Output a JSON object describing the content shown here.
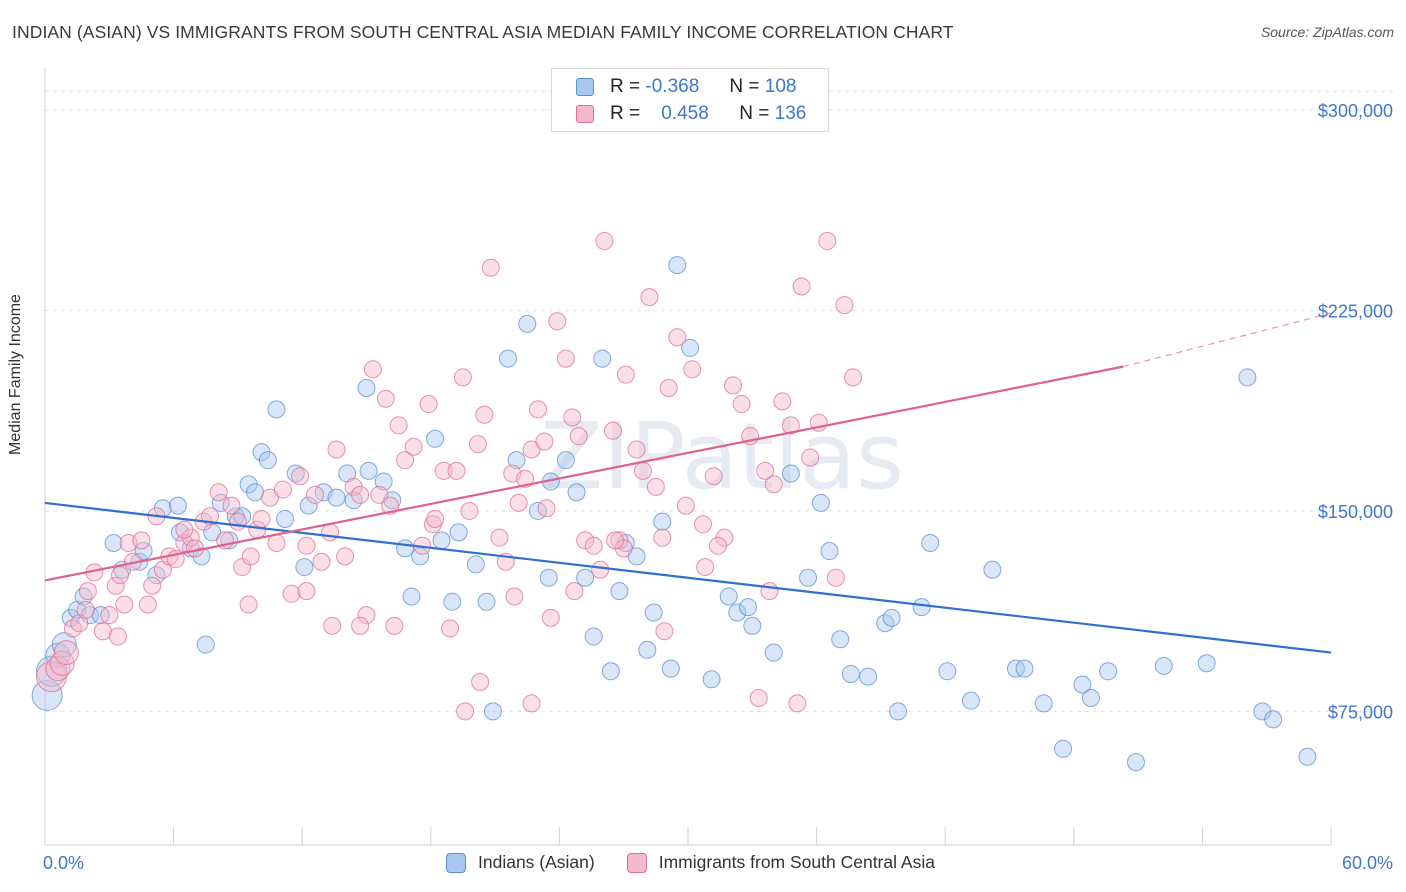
{
  "title": "INDIAN (ASIAN) VS IMMIGRANTS FROM SOUTH CENTRAL ASIA MEDIAN FAMILY INCOME CORRELATION CHART",
  "source": "Source: ZipAtlas.com",
  "watermark": "ZIPatlas",
  "colors": {
    "blue": "#5b8fd6",
    "blue_fill": "#a9c7ee",
    "pink": "#e06d93",
    "pink_fill": "#f4b9cc",
    "tick_text": "#3f77c8"
  },
  "legend": {
    "rows": [
      {
        "r_label": "R =",
        "r_value": "-0.368",
        "n_label": "N =",
        "n_value": "108"
      },
      {
        "r_label": "R =",
        "r_value": "0.458",
        "n_label": "N =",
        "n_value": "136"
      }
    ]
  },
  "bottom_legend": [
    "Indians (Asian)",
    "Immigrants from South Central Asia"
  ],
  "chart_data": {
    "type": "scatter",
    "ylabel": "Median Family Income",
    "xlim": [
      0,
      60
    ],
    "ylim": [
      25000,
      315000
    ],
    "x_tick_labels": [
      "0.0%",
      "60.0%"
    ],
    "y_ticks": [
      75000,
      150000,
      225000,
      300000
    ],
    "y_tick_labels": [
      "$75,000",
      "$150,000",
      "$225,000",
      "$300,000"
    ],
    "grid": "dashed horizontal",
    "series": [
      {
        "name": "Indians (Asian)",
        "trend": {
          "x": [
            0,
            60
          ],
          "y": [
            153000,
            97000
          ]
        },
        "points": [
          [
            0.1,
            81000
          ],
          [
            0.3,
            90000
          ],
          [
            0.6,
            96000
          ],
          [
            0.9,
            100000
          ],
          [
            1.2,
            110000
          ],
          [
            1.5,
            113000
          ],
          [
            1.8,
            118000
          ],
          [
            2.1,
            111000
          ],
          [
            3.2,
            138000
          ],
          [
            3.6,
            128000
          ],
          [
            4.4,
            131000
          ],
          [
            4.6,
            135000
          ],
          [
            5.2,
            126000
          ],
          [
            5.5,
            151000
          ],
          [
            6.2,
            152000
          ],
          [
            6.3,
            142000
          ],
          [
            6.8,
            136000
          ],
          [
            7.3,
            133000
          ],
          [
            7.5,
            100000
          ],
          [
            7.8,
            142000
          ],
          [
            8.2,
            153000
          ],
          [
            8.6,
            139000
          ],
          [
            8.9,
            148000
          ],
          [
            9.2,
            148000
          ],
          [
            9.5,
            160000
          ],
          [
            9.8,
            157000
          ],
          [
            10.1,
            172000
          ],
          [
            10.4,
            169000
          ],
          [
            10.8,
            188000
          ],
          [
            11.2,
            147000
          ],
          [
            11.7,
            164000
          ],
          [
            12.1,
            129000
          ],
          [
            12.3,
            152000
          ],
          [
            13.0,
            157000
          ],
          [
            13.6,
            155000
          ],
          [
            14.1,
            164000
          ],
          [
            14.4,
            154000
          ],
          [
            15.0,
            196000
          ],
          [
            15.1,
            165000
          ],
          [
            15.8,
            161000
          ],
          [
            16.2,
            154000
          ],
          [
            16.8,
            136000
          ],
          [
            17.1,
            118000
          ],
          [
            17.5,
            133000
          ],
          [
            18.2,
            177000
          ],
          [
            18.5,
            139000
          ],
          [
            19.0,
            116000
          ],
          [
            19.3,
            142000
          ],
          [
            20.1,
            130000
          ],
          [
            20.6,
            116000
          ],
          [
            20.9,
            75000
          ],
          [
            21.6,
            207000
          ],
          [
            22.0,
            169000
          ],
          [
            22.5,
            220000
          ],
          [
            23.0,
            150000
          ],
          [
            23.5,
            125000
          ],
          [
            23.6,
            161000
          ],
          [
            24.3,
            169000
          ],
          [
            24.8,
            157000
          ],
          [
            25.2,
            125000
          ],
          [
            25.6,
            103000
          ],
          [
            26.0,
            207000
          ],
          [
            26.4,
            90000
          ],
          [
            26.8,
            120000
          ],
          [
            27.1,
            138000
          ],
          [
            27.6,
            133000
          ],
          [
            28.1,
            98000
          ],
          [
            28.4,
            112000
          ],
          [
            28.8,
            146000
          ],
          [
            29.2,
            91000
          ],
          [
            29.5,
            242000
          ],
          [
            30.1,
            211000
          ],
          [
            31.1,
            87000
          ],
          [
            31.9,
            118000
          ],
          [
            32.3,
            112000
          ],
          [
            32.8,
            114000
          ],
          [
            33.0,
            107000
          ],
          [
            34.0,
            97000
          ],
          [
            34.8,
            164000
          ],
          [
            35.6,
            125000
          ],
          [
            36.2,
            153000
          ],
          [
            36.6,
            135000
          ],
          [
            37.1,
            102000
          ],
          [
            37.6,
            89000
          ],
          [
            38.4,
            88000
          ],
          [
            39.2,
            108000
          ],
          [
            39.5,
            110000
          ],
          [
            39.8,
            75000
          ],
          [
            40.9,
            114000
          ],
          [
            41.3,
            138000
          ],
          [
            42.1,
            90000
          ],
          [
            43.2,
            79000
          ],
          [
            44.2,
            128000
          ],
          [
            45.3,
            91000
          ],
          [
            45.7,
            91000
          ],
          [
            46.6,
            78000
          ],
          [
            47.5,
            61000
          ],
          [
            48.4,
            85000
          ],
          [
            48.8,
            80000
          ],
          [
            49.6,
            90000
          ],
          [
            50.9,
            56000
          ],
          [
            52.2,
            92000
          ],
          [
            54.2,
            93000
          ],
          [
            56.1,
            200000
          ],
          [
            56.8,
            75000
          ],
          [
            57.3,
            72000
          ],
          [
            58.9,
            58000
          ],
          [
            2.6,
            111000
          ]
        ]
      },
      {
        "name": "Immigrants from South Central Asia",
        "trend": {
          "x": [
            0,
            50.3
          ],
          "y": [
            124000,
            204000
          ]
        },
        "trend_dashed": {
          "x": [
            50.3,
            60
          ],
          "y": [
            204000,
            224000
          ]
        },
        "points": [
          [
            0.3,
            88000
          ],
          [
            0.6,
            91000
          ],
          [
            0.8,
            93000
          ],
          [
            1.0,
            97000
          ],
          [
            1.3,
            106000
          ],
          [
            1.6,
            108000
          ],
          [
            1.9,
            113000
          ],
          [
            2.0,
            120000
          ],
          [
            2.3,
            127000
          ],
          [
            2.7,
            105000
          ],
          [
            3.0,
            111000
          ],
          [
            3.3,
            122000
          ],
          [
            3.5,
            126000
          ],
          [
            3.4,
            103000
          ],
          [
            3.9,
            138000
          ],
          [
            4.1,
            131000
          ],
          [
            4.5,
            139000
          ],
          [
            4.8,
            115000
          ],
          [
            5.0,
            122000
          ],
          [
            5.2,
            148000
          ],
          [
            5.5,
            128000
          ],
          [
            5.8,
            133000
          ],
          [
            6.1,
            132000
          ],
          [
            6.5,
            138000
          ],
          [
            6.8,
            140000
          ],
          [
            7.0,
            136000
          ],
          [
            7.4,
            146000
          ],
          [
            7.7,
            148000
          ],
          [
            8.1,
            157000
          ],
          [
            8.4,
            139000
          ],
          [
            8.7,
            152000
          ],
          [
            9.0,
            146000
          ],
          [
            9.2,
            129000
          ],
          [
            9.6,
            133000
          ],
          [
            9.9,
            143000
          ],
          [
            10.1,
            147000
          ],
          [
            10.5,
            155000
          ],
          [
            10.8,
            138000
          ],
          [
            11.1,
            158000
          ],
          [
            11.5,
            119000
          ],
          [
            11.9,
            163000
          ],
          [
            12.2,
            137000
          ],
          [
            12.6,
            156000
          ],
          [
            12.9,
            131000
          ],
          [
            13.3,
            142000
          ],
          [
            13.6,
            173000
          ],
          [
            14.0,
            133000
          ],
          [
            14.4,
            159000
          ],
          [
            14.7,
            156000
          ],
          [
            15.0,
            111000
          ],
          [
            15.3,
            203000
          ],
          [
            15.6,
            156000
          ],
          [
            15.9,
            192000
          ],
          [
            16.1,
            152000
          ],
          [
            16.5,
            182000
          ],
          [
            16.8,
            169000
          ],
          [
            17.2,
            174000
          ],
          [
            17.6,
            137000
          ],
          [
            17.9,
            190000
          ],
          [
            18.1,
            145000
          ],
          [
            18.6,
            165000
          ],
          [
            18.9,
            106000
          ],
          [
            19.2,
            165000
          ],
          [
            19.5,
            200000
          ],
          [
            19.8,
            150000
          ],
          [
            20.2,
            175000
          ],
          [
            20.5,
            186000
          ],
          [
            20.8,
            241000
          ],
          [
            21.2,
            140000
          ],
          [
            21.5,
            131000
          ],
          [
            21.8,
            164000
          ],
          [
            22.1,
            153000
          ],
          [
            22.4,
            162000
          ],
          [
            22.7,
            173000
          ],
          [
            23.0,
            188000
          ],
          [
            23.3,
            176000
          ],
          [
            23.6,
            110000
          ],
          [
            23.9,
            221000
          ],
          [
            24.3,
            207000
          ],
          [
            24.6,
            185000
          ],
          [
            24.9,
            178000
          ],
          [
            25.2,
            139000
          ],
          [
            25.6,
            137000
          ],
          [
            25.9,
            128000
          ],
          [
            26.1,
            251000
          ],
          [
            26.5,
            180000
          ],
          [
            26.8,
            139000
          ],
          [
            27.1,
            201000
          ],
          [
            27.6,
            173000
          ],
          [
            27.9,
            165000
          ],
          [
            28.2,
            230000
          ],
          [
            28.5,
            159000
          ],
          [
            28.9,
            105000
          ],
          [
            29.1,
            196000
          ],
          [
            29.5,
            215000
          ],
          [
            29.9,
            152000
          ],
          [
            30.2,
            203000
          ],
          [
            30.8,
            129000
          ],
          [
            31.2,
            163000
          ],
          [
            31.7,
            140000
          ],
          [
            32.1,
            197000
          ],
          [
            32.5,
            190000
          ],
          [
            32.9,
            178000
          ],
          [
            33.3,
            80000
          ],
          [
            33.6,
            165000
          ],
          [
            34.0,
            160000
          ],
          [
            34.4,
            191000
          ],
          [
            34.8,
            182000
          ],
          [
            35.1,
            78000
          ],
          [
            35.3,
            234000
          ],
          [
            35.7,
            170000
          ],
          [
            36.1,
            183000
          ],
          [
            36.5,
            251000
          ],
          [
            36.9,
            125000
          ],
          [
            37.3,
            227000
          ],
          [
            37.7,
            200000
          ],
          [
            13.4,
            107000
          ],
          [
            14.7,
            107000
          ],
          [
            16.3,
            107000
          ],
          [
            19.6,
            75000
          ],
          [
            20.3,
            86000
          ],
          [
            22.7,
            78000
          ],
          [
            24.7,
            120000
          ],
          [
            27.0,
            136000
          ],
          [
            28.8,
            140000
          ],
          [
            31.4,
            137000
          ],
          [
            3.7,
            115000
          ],
          [
            6.5,
            143000
          ],
          [
            9.5,
            115000
          ],
          [
            12.2,
            120000
          ],
          [
            18.2,
            147000
          ],
          [
            21.9,
            118000
          ],
          [
            23.4,
            151000
          ],
          [
            26.6,
            139000
          ],
          [
            30.7,
            145000
          ],
          [
            33.8,
            120000
          ]
        ]
      }
    ]
  }
}
